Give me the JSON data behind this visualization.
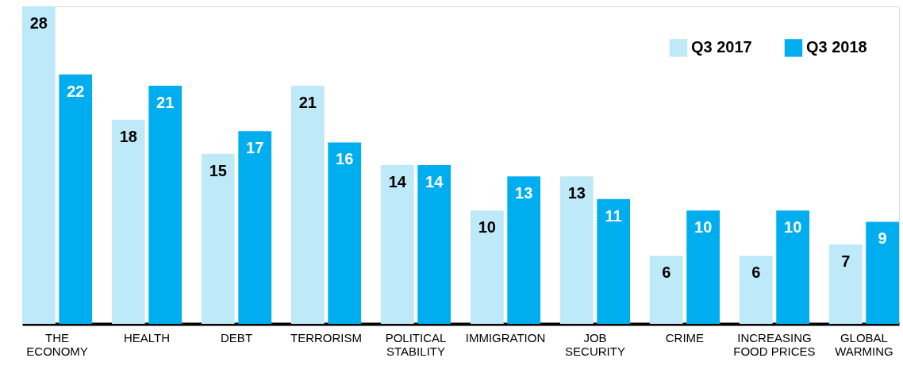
{
  "chart_data": {
    "type": "bar",
    "categories": [
      "THE ECONOMY",
      "HEALTH",
      "DEBT",
      "TERRORISM",
      "POLITICAL STABILITY",
      "IMMIGRATION",
      "JOB SECURITY",
      "CRIME",
      "INCREASING FOOD PRICES",
      "GLOBAL WARMING"
    ],
    "series": [
      {
        "name": "Q3 2017",
        "color": "#bde9f8",
        "values": [
          28,
          18,
          15,
          21,
          14,
          10,
          13,
          6,
          6,
          7
        ]
      },
      {
        "name": "Q3 2018",
        "color": "#00aeef",
        "values": [
          22,
          21,
          17,
          16,
          14,
          13,
          11,
          10,
          10,
          9
        ]
      }
    ],
    "data_labels": true,
    "legend": "top right",
    "grid": false
  }
}
